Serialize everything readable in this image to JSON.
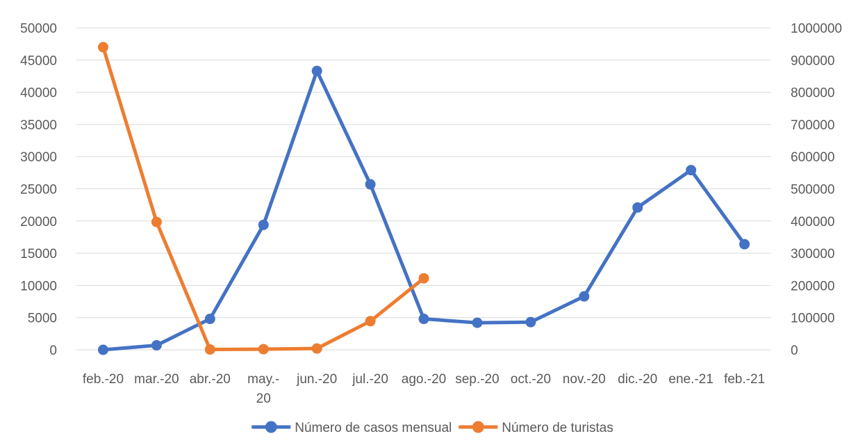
{
  "chart_data": {
    "type": "line",
    "categories": [
      [
        "feb.-20"
      ],
      [
        "mar.-20"
      ],
      [
        "abr.-20"
      ],
      [
        "may.-",
        "20"
      ],
      [
        "jun.-20"
      ],
      [
        "jul.-20"
      ],
      [
        "ago.-20"
      ],
      [
        "sep.-20"
      ],
      [
        "oct.-20"
      ],
      [
        "nov.-20"
      ],
      [
        "dic.-20"
      ],
      [
        "ene.-21"
      ],
      [
        "feb.-21"
      ]
    ],
    "y_left": {
      "min": 0,
      "max": 50000,
      "step": 5000
    },
    "y_right": {
      "min": 0,
      "max": 1000000,
      "step": 100000
    },
    "grid": true,
    "legend_position": "bottom",
    "series": [
      {
        "name": "Número de casos mensual",
        "axis": "left",
        "color": "#4472C4",
        "values": [
          0,
          700,
          4800,
          19400,
          43300,
          25700,
          4800,
          4200,
          4300,
          8300,
          22100,
          27900,
          16400
        ]
      },
      {
        "name": "Número de turistas",
        "axis": "right",
        "color": "#ED7D31",
        "values": [
          940000,
          397000,
          1000,
          2000,
          4000,
          89000,
          222000,
          null,
          null,
          null,
          null,
          null,
          null
        ]
      }
    ]
  }
}
